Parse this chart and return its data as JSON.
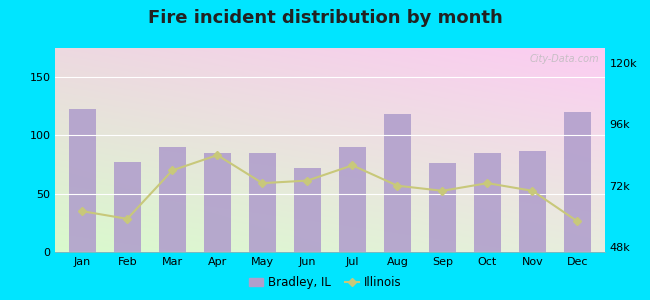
{
  "months": [
    "Jan",
    "Feb",
    "Mar",
    "Apr",
    "May",
    "Jun",
    "Jul",
    "Aug",
    "Sep",
    "Oct",
    "Nov",
    "Dec"
  ],
  "bradley_values": [
    123,
    77,
    90,
    85,
    85,
    72,
    90,
    118,
    76,
    85,
    87,
    120
  ],
  "illinois_right_axis": [
    62000,
    59000,
    78000,
    84000,
    73000,
    74000,
    80000,
    72000,
    70000,
    73000,
    70000,
    58000
  ],
  "bar_color": "#b09ecc",
  "line_color": "#c8c87a",
  "title": "Fire incident distribution by month",
  "title_fontsize": 13,
  "left_ylim": [
    0,
    175
  ],
  "left_yticks": [
    0,
    50,
    100,
    150
  ],
  "right_ylim": [
    46000,
    126000
  ],
  "right_yticks": [
    48000,
    72000,
    96000,
    120000
  ],
  "right_yticklabels": [
    "48k",
    "72k",
    "96k",
    "120k"
  ],
  "background_outer": "#00e5ff",
  "legend_bradley": "Bradley, IL",
  "legend_illinois": "Illinois",
  "watermark": "City-Data.com"
}
